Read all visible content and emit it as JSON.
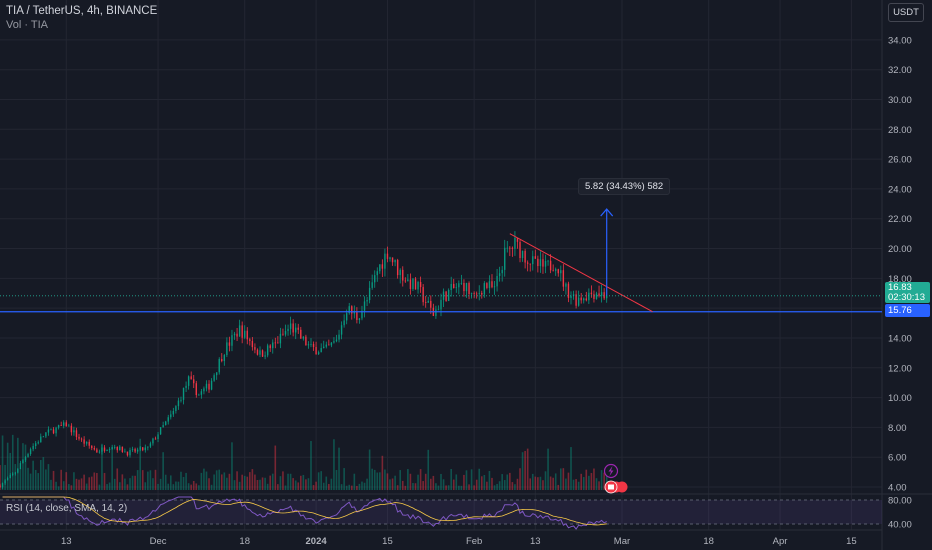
{
  "header": {
    "symbol_line": "TIA / TetherUS, 4h, BINANCE",
    "volume_line": "Vol · TIA"
  },
  "rsi_label": "RSI (14, close, SMA, 14, 2)",
  "currency_button": "USDT",
  "measure_tooltip": "5.82 (34.43%) 582",
  "price_label": {
    "value": "16.83",
    "countdown": "02:30:13"
  },
  "hline_label": "15.76",
  "icons": [
    "lightning-icon",
    "calendar-events-icon"
  ],
  "colors": {
    "background": "#161a25",
    "up": "#089981",
    "down": "#f23645",
    "hline": "#2962ff",
    "trendline": "#f23645",
    "measure": "#2962ff",
    "rsi": "#7e57c2"
  },
  "chart_data": {
    "type": "candlestick",
    "title": "TIA / TetherUS, 4h, BINANCE",
    "y_ticks": [
      "34.00",
      "32.00",
      "30.00",
      "28.00",
      "26.00",
      "24.00",
      "22.00",
      "20.00",
      "18.00",
      "16.00",
      "14.00",
      "12.00",
      "10.00",
      "8.00",
      "6.00",
      "4.00"
    ],
    "ylim": [
      3.8,
      35.2
    ],
    "x_ticks": [
      "13",
      "Dec",
      "18",
      "2024",
      "15",
      "Feb",
      "13",
      "Mar",
      "18",
      "Apr",
      "15"
    ],
    "x_tick_dates": [
      "2023-11-13",
      "2023-12-01",
      "2023-12-18",
      "2024-01-01",
      "2024-01-15",
      "2024-02-01",
      "2024-02-13",
      "2024-03-01",
      "2024-03-18",
      "2024-04-01",
      "2024-04-15"
    ],
    "xlim": [
      "2023-10-31",
      "2024-04-21"
    ],
    "price_path": [
      [
        "2023-10-31",
        4.1
      ],
      [
        "2023-11-03",
        5.0
      ],
      [
        "2023-11-06",
        6.6
      ],
      [
        "2023-11-09",
        7.6
      ],
      [
        "2023-11-13",
        8.2
      ],
      [
        "2023-11-16",
        7.1
      ],
      [
        "2023-11-19",
        6.4
      ],
      [
        "2023-11-22",
        6.8
      ],
      [
        "2023-11-25",
        6.3
      ],
      [
        "2023-11-29",
        6.6
      ],
      [
        "2023-12-01",
        7.6
      ],
      [
        "2023-12-04",
        9.0
      ],
      [
        "2023-12-07",
        11.2
      ],
      [
        "2023-12-09",
        10.2
      ],
      [
        "2023-12-11",
        10.8
      ],
      [
        "2023-12-14",
        13.2
      ],
      [
        "2023-12-17",
        14.6
      ],
      [
        "2023-12-19",
        13.8
      ],
      [
        "2023-12-21",
        12.9
      ],
      [
        "2023-12-24",
        13.6
      ],
      [
        "2023-12-27",
        14.8
      ],
      [
        "2023-12-29",
        14.0
      ],
      [
        "2023-12-31",
        13.3
      ],
      [
        "2024-01-03",
        13.2
      ],
      [
        "2024-01-05",
        13.8
      ],
      [
        "2024-01-07",
        16.0
      ],
      [
        "2024-01-09",
        15.4
      ],
      [
        "2024-01-11",
        16.5
      ],
      [
        "2024-01-13",
        18.5
      ],
      [
        "2024-01-15",
        19.8
      ],
      [
        "2024-01-17",
        18.6
      ],
      [
        "2024-01-19",
        17.8
      ],
      [
        "2024-01-21",
        17.3
      ],
      [
        "2024-01-24",
        15.6
      ],
      [
        "2024-01-26",
        16.8
      ],
      [
        "2024-01-28",
        17.3
      ],
      [
        "2024-01-30",
        17.6
      ],
      [
        "2024-02-01",
        16.6
      ],
      [
        "2024-02-03",
        17.6
      ],
      [
        "2024-02-05",
        17.2
      ],
      [
        "2024-02-07",
        19.6
      ],
      [
        "2024-02-09",
        20.3
      ],
      [
        "2024-02-11",
        19.5
      ],
      [
        "2024-02-13",
        18.9
      ],
      [
        "2024-02-15",
        18.7
      ],
      [
        "2024-02-17",
        19.1
      ],
      [
        "2024-02-19",
        17.3
      ],
      [
        "2024-02-21",
        16.6
      ],
      [
        "2024-02-23",
        16.9
      ],
      [
        "2024-02-25",
        17.1
      ],
      [
        "2024-02-27",
        16.83
      ]
    ],
    "horizontal_line": 15.76,
    "trendline": {
      "start": [
        "2024-02-08",
        21.0
      ],
      "end": [
        "2024-03-07",
        15.76
      ]
    },
    "measure": {
      "from": [
        "2024-02-27",
        16.83
      ],
      "to": [
        "2024-02-27",
        22.65
      ],
      "label": "5.82 (34.43%) 582"
    },
    "last_price": 16.83,
    "rsi": {
      "name": "RSI (14, close, SMA, 14, 2)",
      "ticks": [
        "80.00",
        "40.00"
      ],
      "ylim": [
        30,
        85
      ],
      "band": [
        40,
        80
      ]
    }
  }
}
